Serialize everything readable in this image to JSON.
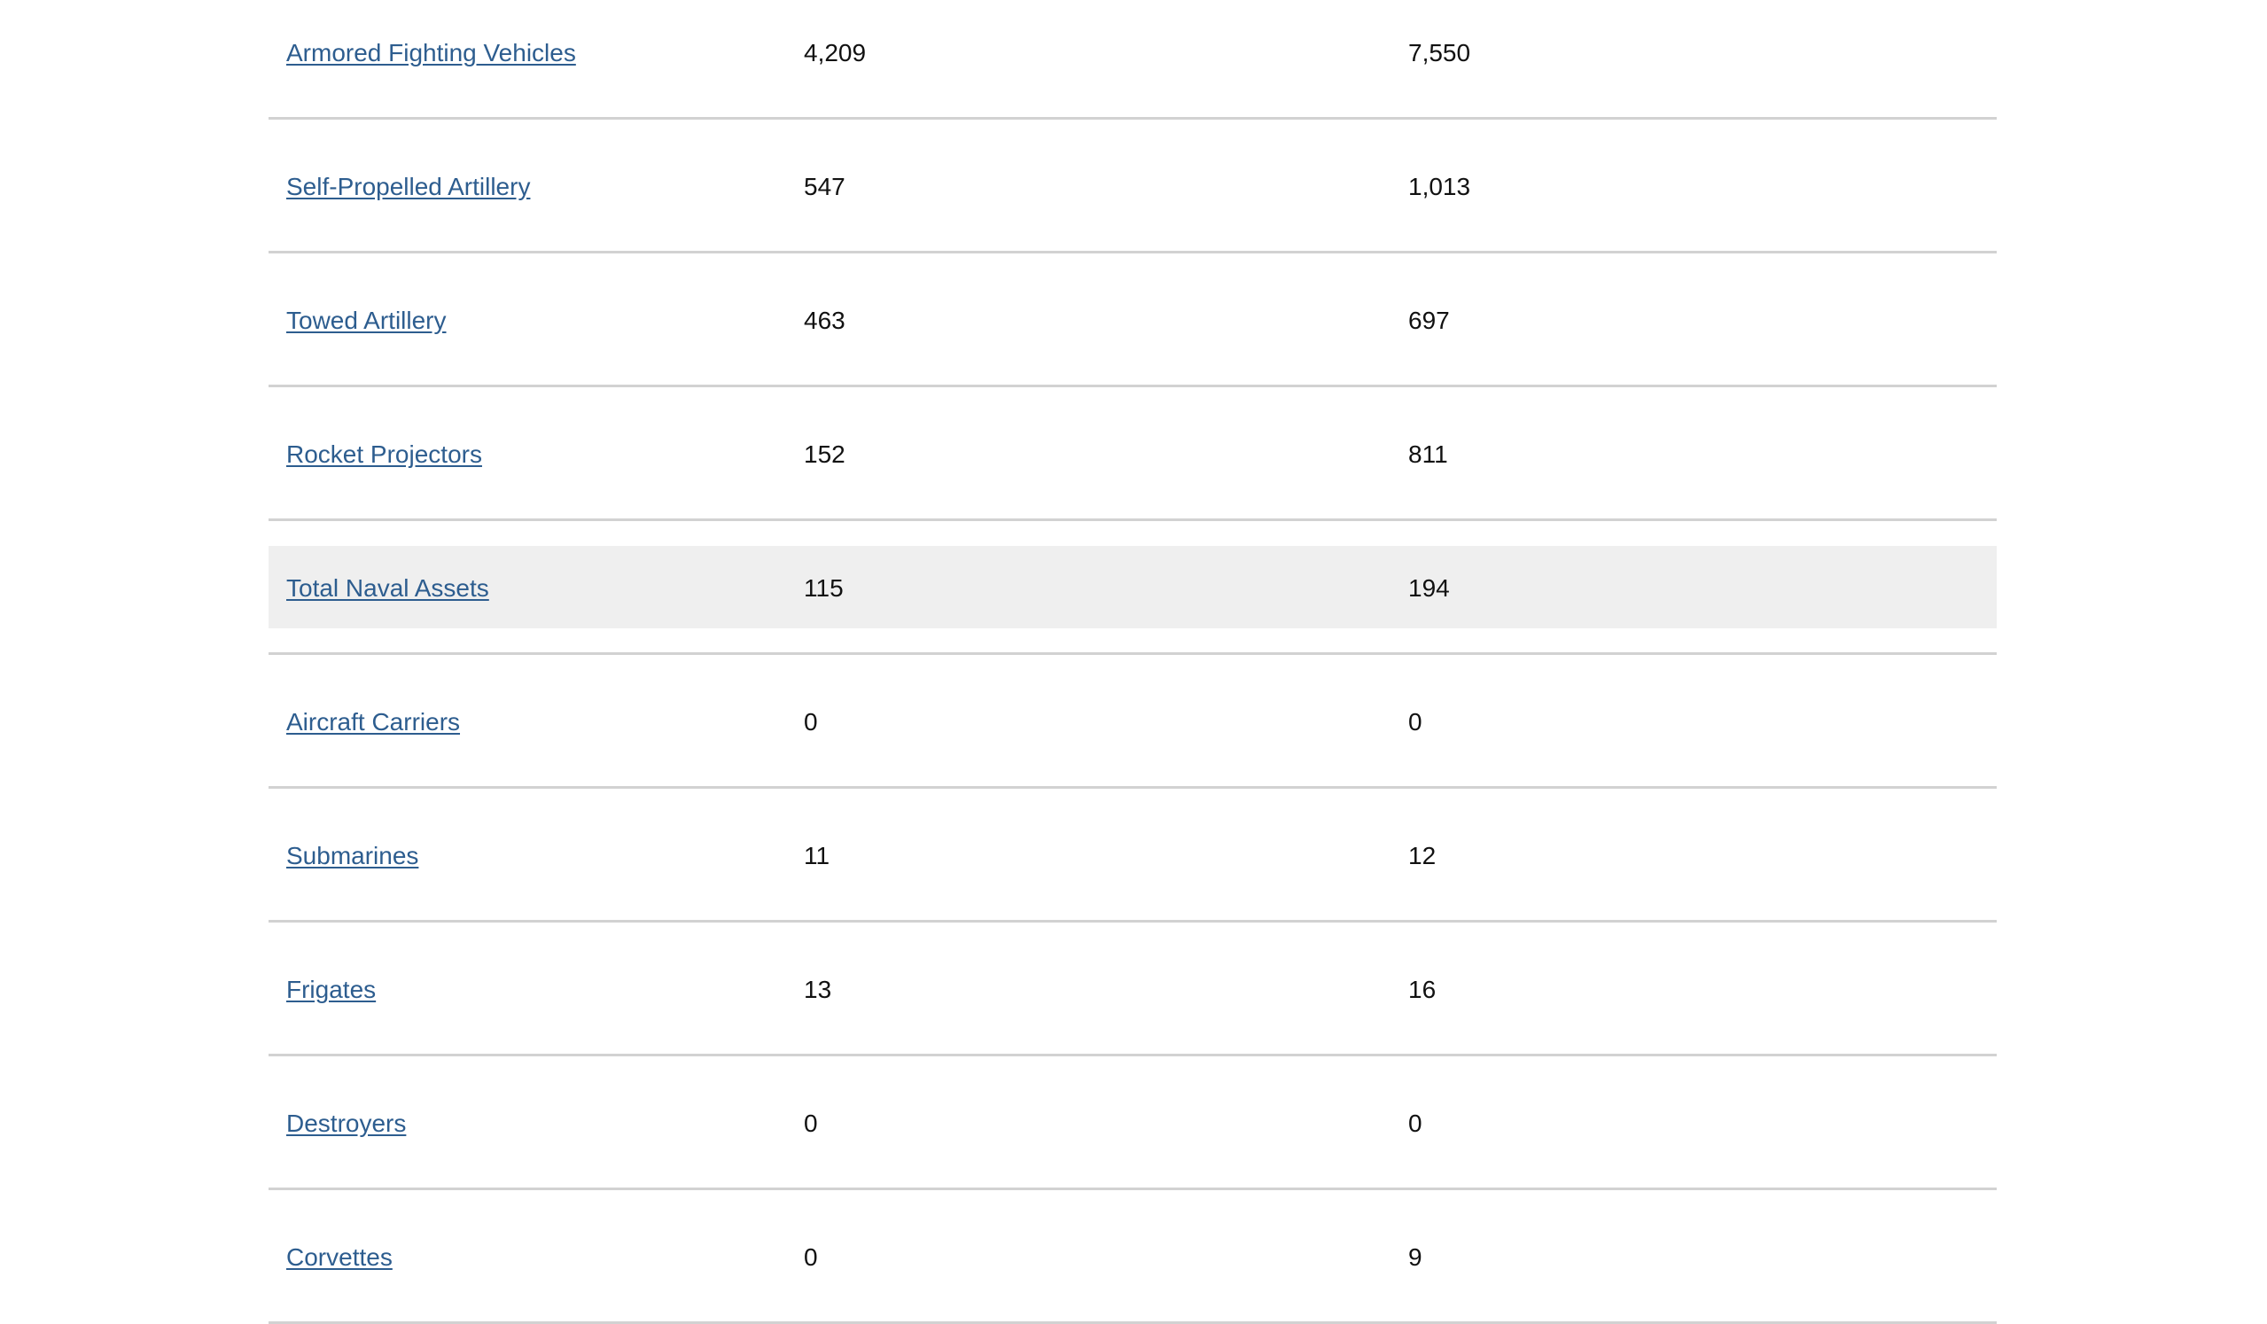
{
  "rows": [
    {
      "label": "Armored Fighting Vehicles",
      "col2": "4,209",
      "col3": "7,550",
      "highlight": false
    },
    {
      "label": "Self-Propelled Artillery",
      "col2": "547",
      "col3": "1,013",
      "highlight": false
    },
    {
      "label": "Towed Artillery",
      "col2": "463",
      "col3": "697",
      "highlight": false
    },
    {
      "label": "Rocket Projectors",
      "col2": "152",
      "col3": "811",
      "highlight": false
    },
    {
      "label": "Total Naval Assets",
      "col2": "115",
      "col3": "194",
      "highlight": true
    },
    {
      "label": "Aircraft Carriers",
      "col2": "0",
      "col3": "0",
      "highlight": false
    },
    {
      "label": "Submarines",
      "col2": "11",
      "col3": "12",
      "highlight": false
    },
    {
      "label": "Frigates",
      "col2": "13",
      "col3": "16",
      "highlight": false
    },
    {
      "label": "Destroyers",
      "col2": "0",
      "col3": "0",
      "highlight": false
    },
    {
      "label": "Corvettes",
      "col2": "0",
      "col3": "9",
      "highlight": false
    }
  ],
  "colors": {
    "link": "#2d5d8f",
    "highlight_bg": "#efefef",
    "divider": "#d2d2d2"
  }
}
